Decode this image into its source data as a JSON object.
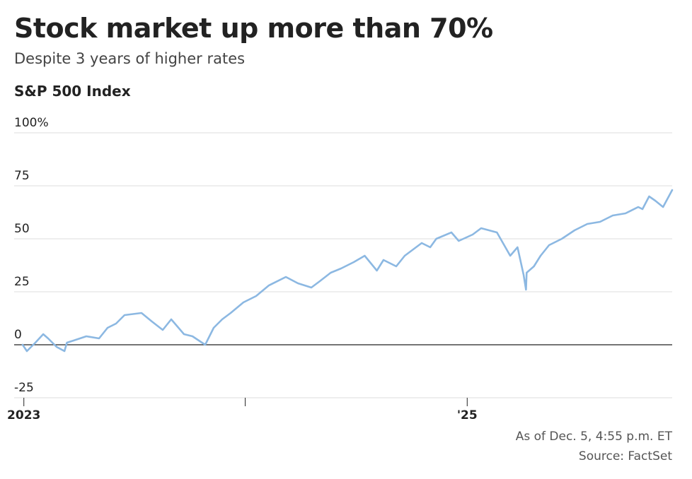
{
  "header": {
    "title": "Stock market up more than 70%",
    "subtitle": "Despite 3 years of higher rates",
    "chart_label": "S&P 500 Index"
  },
  "footer": {
    "as_of": "As of Dec. 5, 4:55 p.m. ET",
    "source": "Source: FactSet"
  },
  "colors": {
    "line": "#8cb8e2",
    "grid": "#dddddd",
    "zero_line": "#222222",
    "text": "#222222"
  },
  "chart_data": {
    "type": "line",
    "title": "S&P 500 Index",
    "xlabel": "",
    "ylabel": "",
    "ylim": [
      -25,
      100
    ],
    "xlim": [
      "2022-12-16",
      "2025-12-05"
    ],
    "ytick_labels": [
      "100%",
      "75",
      "50",
      "25",
      "0",
      "-25"
    ],
    "ytick_values": [
      100,
      75,
      50,
      25,
      0,
      -25
    ],
    "xtick_labels": [
      "2023",
      "",
      "'25"
    ],
    "xtick_dates": [
      "2023-01-01",
      "2024-01-01",
      "2025-01-01"
    ],
    "grid": true,
    "legend": "none",
    "series": [
      {
        "x": [
          "2022-12-30",
          "2023-01-06",
          "2023-01-13",
          "2023-01-20",
          "2023-02-02",
          "2023-02-10",
          "2023-02-24",
          "2023-03-09",
          "2023-03-13",
          "2023-03-24",
          "2023-04-14",
          "2023-05-05",
          "2023-05-19",
          "2023-06-02",
          "2023-06-16",
          "2023-07-14",
          "2023-07-31",
          "2023-08-18",
          "2023-09-01",
          "2023-09-22",
          "2023-10-06",
          "2023-10-27",
          "2023-11-10",
          "2023-11-24",
          "2023-12-08",
          "2023-12-29",
          "2024-01-19",
          "2024-02-09",
          "2024-03-08",
          "2024-03-28",
          "2024-04-19",
          "2024-05-03",
          "2024-05-21",
          "2024-06-07",
          "2024-06-28",
          "2024-07-16",
          "2024-08-05",
          "2024-08-16",
          "2024-09-06",
          "2024-09-20",
          "2024-10-18",
          "2024-11-01",
          "2024-11-11",
          "2024-12-06",
          "2024-12-18",
          "2025-01-10",
          "2025-01-24",
          "2025-02-19",
          "2025-03-13",
          "2025-03-25",
          "2025-04-04",
          "2025-04-08",
          "2025-04-09",
          "2025-04-21",
          "2025-05-02",
          "2025-05-16",
          "2025-06-06",
          "2025-06-27",
          "2025-07-18",
          "2025-08-08",
          "2025-08-29",
          "2025-09-19",
          "2025-10-10",
          "2025-10-17",
          "2025-10-28",
          "2025-11-07",
          "2025-11-20",
          "2025-12-05"
        ],
        "y": [
          0,
          -3,
          -1,
          1,
          5,
          3,
          -1,
          -3,
          1,
          2,
          4,
          3,
          8,
          10,
          14,
          15,
          11,
          7,
          12,
          5,
          4,
          0,
          8,
          12,
          15,
          20,
          23,
          28,
          32,
          29,
          27,
          30,
          34,
          36,
          39,
          42,
          35,
          40,
          37,
          42,
          48,
          46,
          50,
          53,
          49,
          52,
          55,
          53,
          42,
          46,
          33,
          26,
          34,
          37,
          42,
          47,
          50,
          54,
          57,
          58,
          61,
          62,
          65,
          64,
          70,
          68,
          65,
          73
        ]
      }
    ]
  }
}
